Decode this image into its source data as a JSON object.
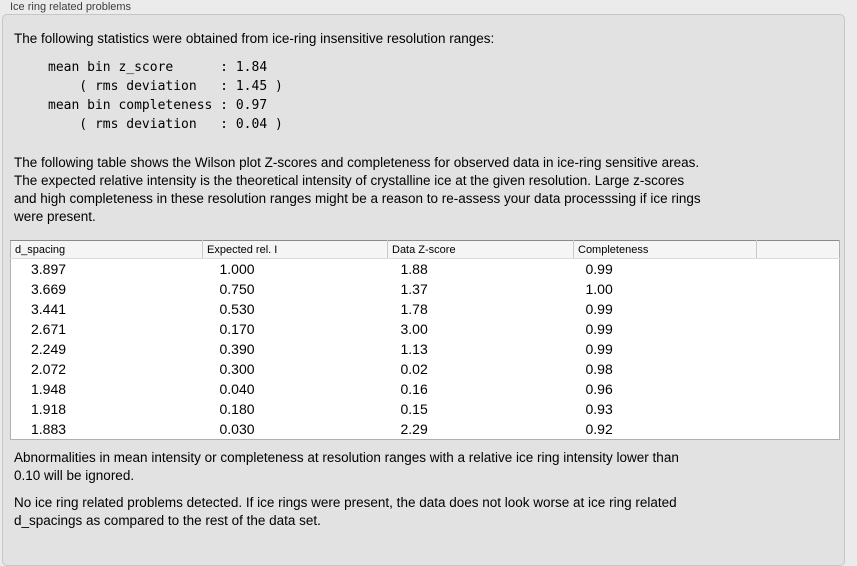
{
  "panel": {
    "title": "Ice ring related problems"
  },
  "colors": {
    "page_bg": "#ebebeb",
    "panel_bg": "#e2e2e2",
    "panel_border": "#c6c6c6",
    "table_bg": "#ffffff",
    "table_header_bg": "#f5f5f5"
  },
  "sections": {
    "intro": "The following statistics were obtained from ice-ring insensitive resolution ranges:",
    "stats_block": "mean bin z_score      : 1.84\n    ( rms deviation   : 1.45 )\nmean bin completeness : 0.97\n    ( rms deviation   : 0.04 )",
    "description": "The following table shows the Wilson plot Z-scores and completeness for observed data in ice-ring sensitive areas.\nThe expected relative intensity is the theoretical intensity of crystalline ice at the given resolution. Large z-scores\nand high completeness in these resolution ranges might be a reason to re-assess your data processsing if ice rings\nwere present.",
    "note_threshold": "Abnormalities in mean intensity or completeness at resolution ranges with a relative ice ring intensity lower than\n0.10 will be ignored.",
    "conclusion": "No ice ring related problems detected. If ice rings were present, the data does not look worse at ice ring related\nd_spacings as compared to the rest of the data set."
  },
  "table": {
    "columns": [
      "d_spacing",
      "Expected rel. I",
      "Data Z-score",
      "Completeness"
    ],
    "rows": [
      [
        "3.897",
        "1.000",
        "1.88",
        "0.99"
      ],
      [
        "3.669",
        "0.750",
        "1.37",
        "1.00"
      ],
      [
        "3.441",
        "0.530",
        "1.78",
        "0.99"
      ],
      [
        "2.671",
        "0.170",
        "3.00",
        "0.99"
      ],
      [
        "2.249",
        "0.390",
        "1.13",
        "0.99"
      ],
      [
        "2.072",
        "0.300",
        "0.02",
        "0.98"
      ],
      [
        "1.948",
        "0.040",
        "0.16",
        "0.96"
      ],
      [
        "1.918",
        "0.180",
        "0.15",
        "0.93"
      ],
      [
        "1.883",
        "0.030",
        "2.29",
        "0.92"
      ]
    ]
  }
}
